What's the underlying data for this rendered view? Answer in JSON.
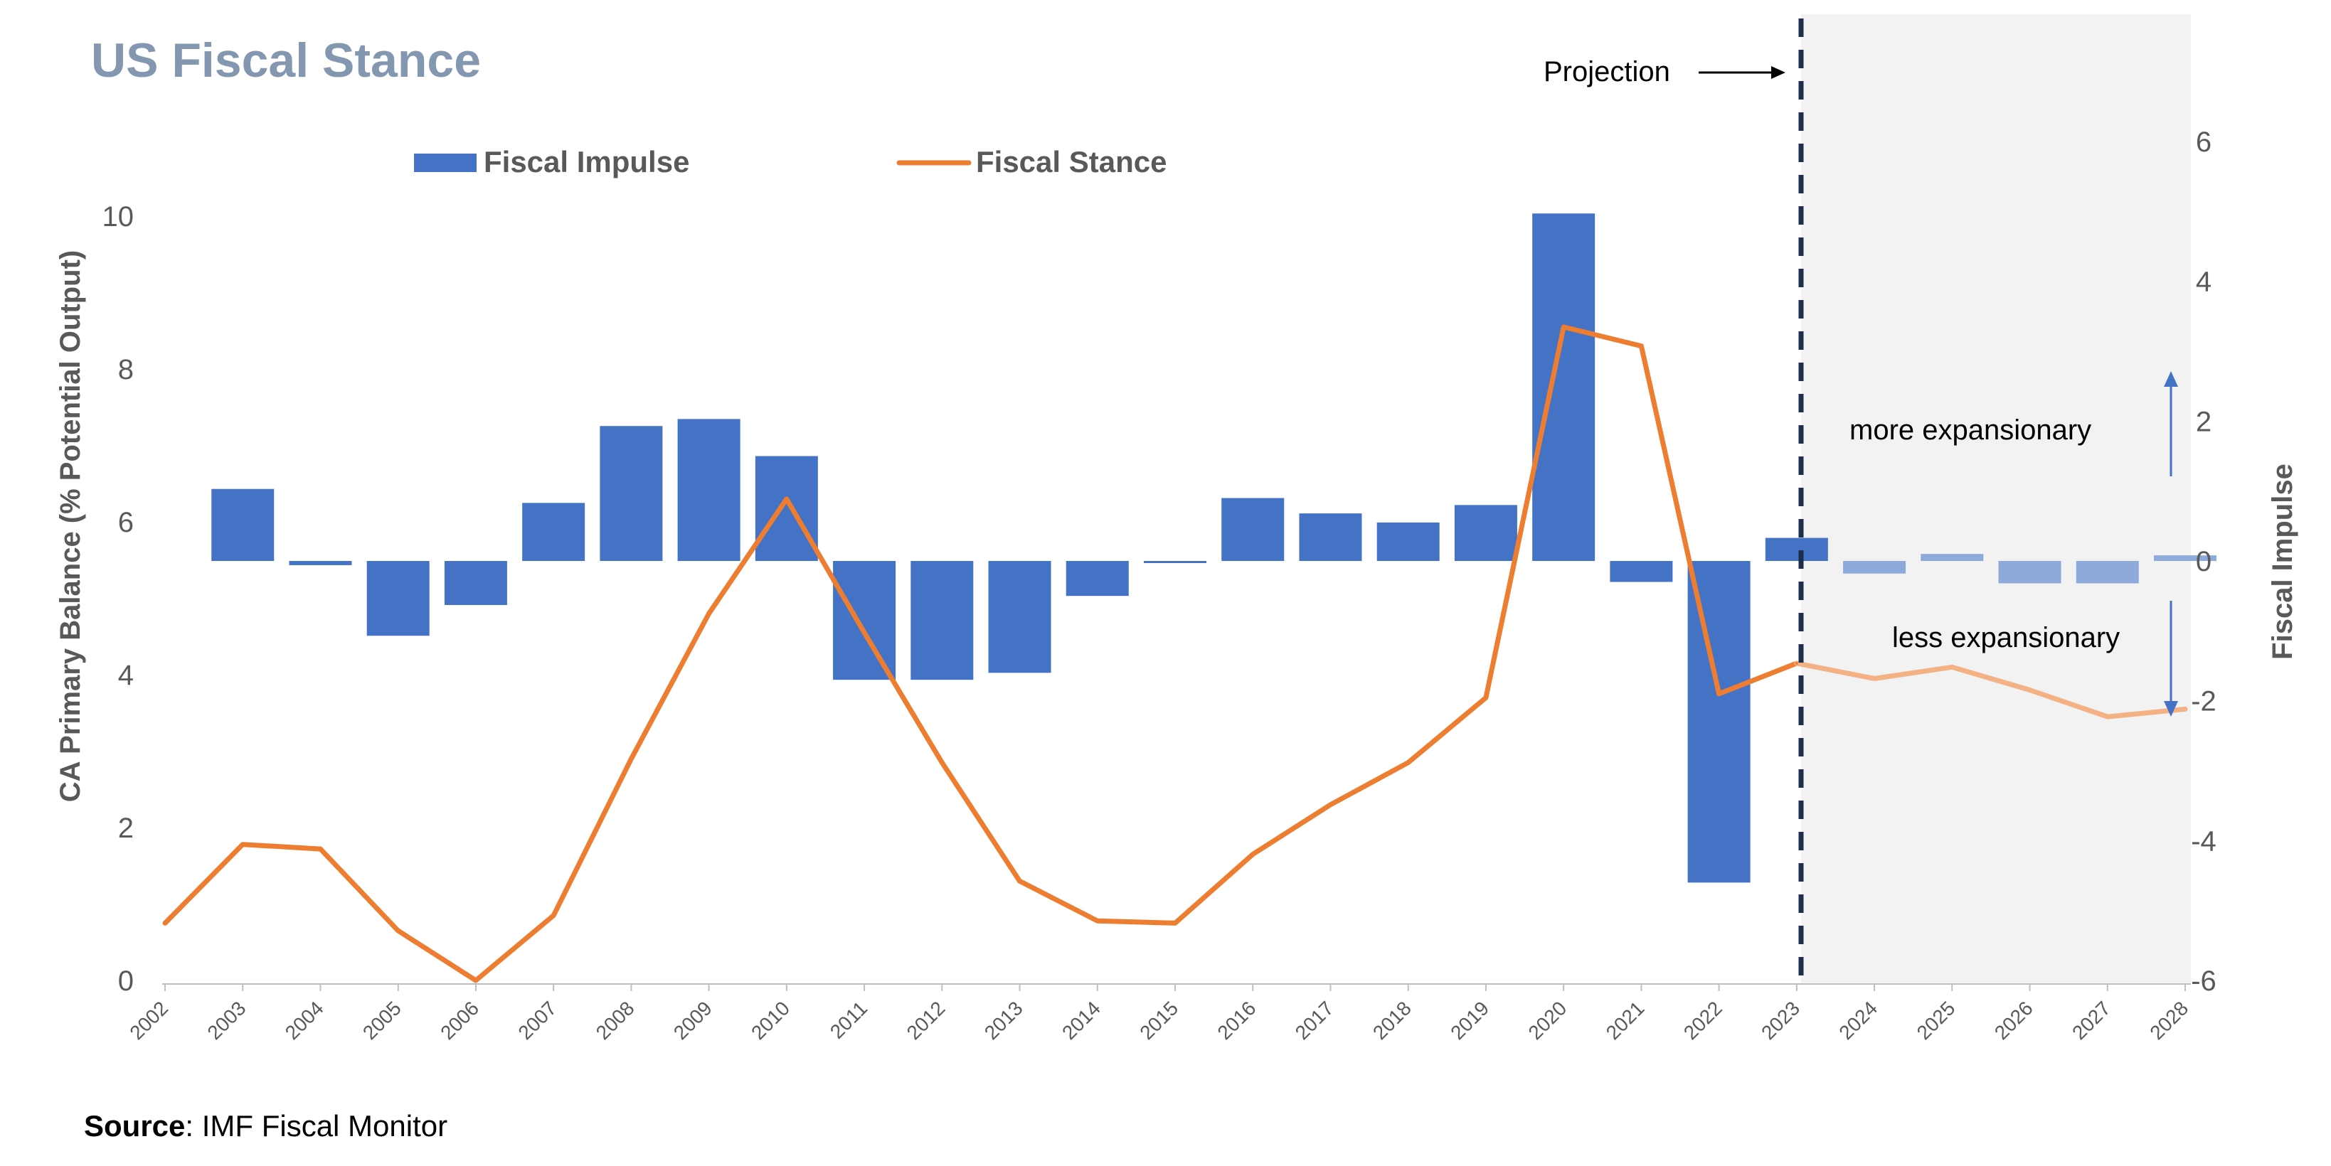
{
  "colors": {
    "bar": "#4472C4",
    "bar_projection": "#8EA9DB",
    "line": "#ED7D31",
    "line_projection": "#F4B183",
    "title": "#8497B0",
    "axis_text": "#595959",
    "shade": "#F2F2F2",
    "divider": "#1F2D4D",
    "annotation_arrow": "#4472C4"
  },
  "chart_data": {
    "type": "bar",
    "title": "US Fiscal Stance",
    "source_label": "Source",
    "source_text": ": IMF Fiscal Monitor",
    "categories": [
      "2002",
      "2003",
      "2004",
      "2005",
      "2006",
      "2007",
      "2008",
      "2009",
      "2010",
      "2011",
      "2012",
      "2013",
      "2014",
      "2015",
      "2016",
      "2017",
      "2018",
      "2019",
      "2020",
      "2021",
      "2022",
      "2023",
      "2024",
      "2025",
      "2026",
      "2027",
      "2028"
    ],
    "projection_start": "2024",
    "projection_label": "Projection",
    "ylabel": "CA Primary Balance (% Potential Output)",
    "y2label": "Fiscal Impulse",
    "ylim": [
      0,
      10
    ],
    "yticks": [
      "0",
      "2",
      "4",
      "6",
      "8",
      "10"
    ],
    "y2lim": [
      -6,
      6
    ],
    "y2ticks": [
      "-6",
      "-4",
      "-2",
      "0",
      "2",
      "4",
      "6"
    ],
    "series": [
      {
        "name": "Fiscal Impulse",
        "type": "bar",
        "axis": "right",
        "values": [
          null,
          1.03,
          -0.06,
          -1.07,
          -0.63,
          0.83,
          1.93,
          2.03,
          1.5,
          -1.7,
          -1.7,
          -1.6,
          -0.5,
          -0.03,
          0.9,
          0.68,
          0.55,
          0.8,
          4.97,
          -0.3,
          -4.6,
          0.33,
          -0.18,
          0.1,
          -0.32,
          -0.32,
          0.08
        ]
      },
      {
        "name": "Fiscal Stance",
        "type": "line",
        "axis": "left",
        "values": [
          0.75,
          1.78,
          1.72,
          0.65,
          0.0,
          0.85,
          2.9,
          4.8,
          6.3,
          4.55,
          2.85,
          1.3,
          0.78,
          0.75,
          1.65,
          2.3,
          2.85,
          3.7,
          8.55,
          8.3,
          3.75,
          4.15,
          3.95,
          4.1,
          3.8,
          3.45,
          3.55
        ]
      }
    ],
    "annotations": {
      "up": "more expansionary",
      "down": "less expansionary"
    }
  }
}
